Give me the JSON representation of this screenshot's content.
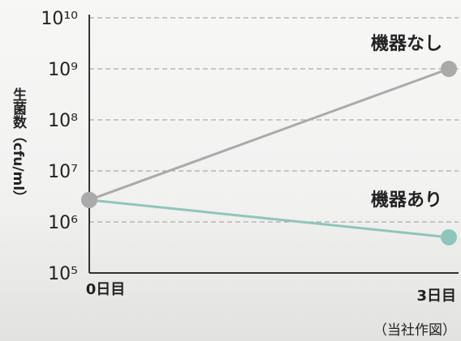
{
  "chart_data": {
    "type": "line",
    "y_label": "生菌数（cfu/ml）",
    "categories": [
      "0日目",
      "3日目"
    ],
    "series": [
      {
        "name": "機器なし",
        "color": "#aaaaaa",
        "values": [
          2700000,
          1000000000
        ]
      },
      {
        "name": "機器あり",
        "color": "#8fc5bb",
        "values": [
          2700000,
          500000
        ]
      }
    ],
    "ylim": [
      100000,
      10000000000
    ],
    "yticks": [
      {
        "value": 100000,
        "label": "10⁵"
      },
      {
        "value": 1000000,
        "label": "10⁶"
      },
      {
        "value": 10000000,
        "label": "10⁷"
      },
      {
        "value": 100000000,
        "label": "10⁸"
      },
      {
        "value": 1000000000,
        "label": "10⁹"
      },
      {
        "value": 10000000000,
        "label": "10¹⁰"
      }
    ],
    "log_y": true,
    "grid": true,
    "note": "（当社作図）"
  }
}
